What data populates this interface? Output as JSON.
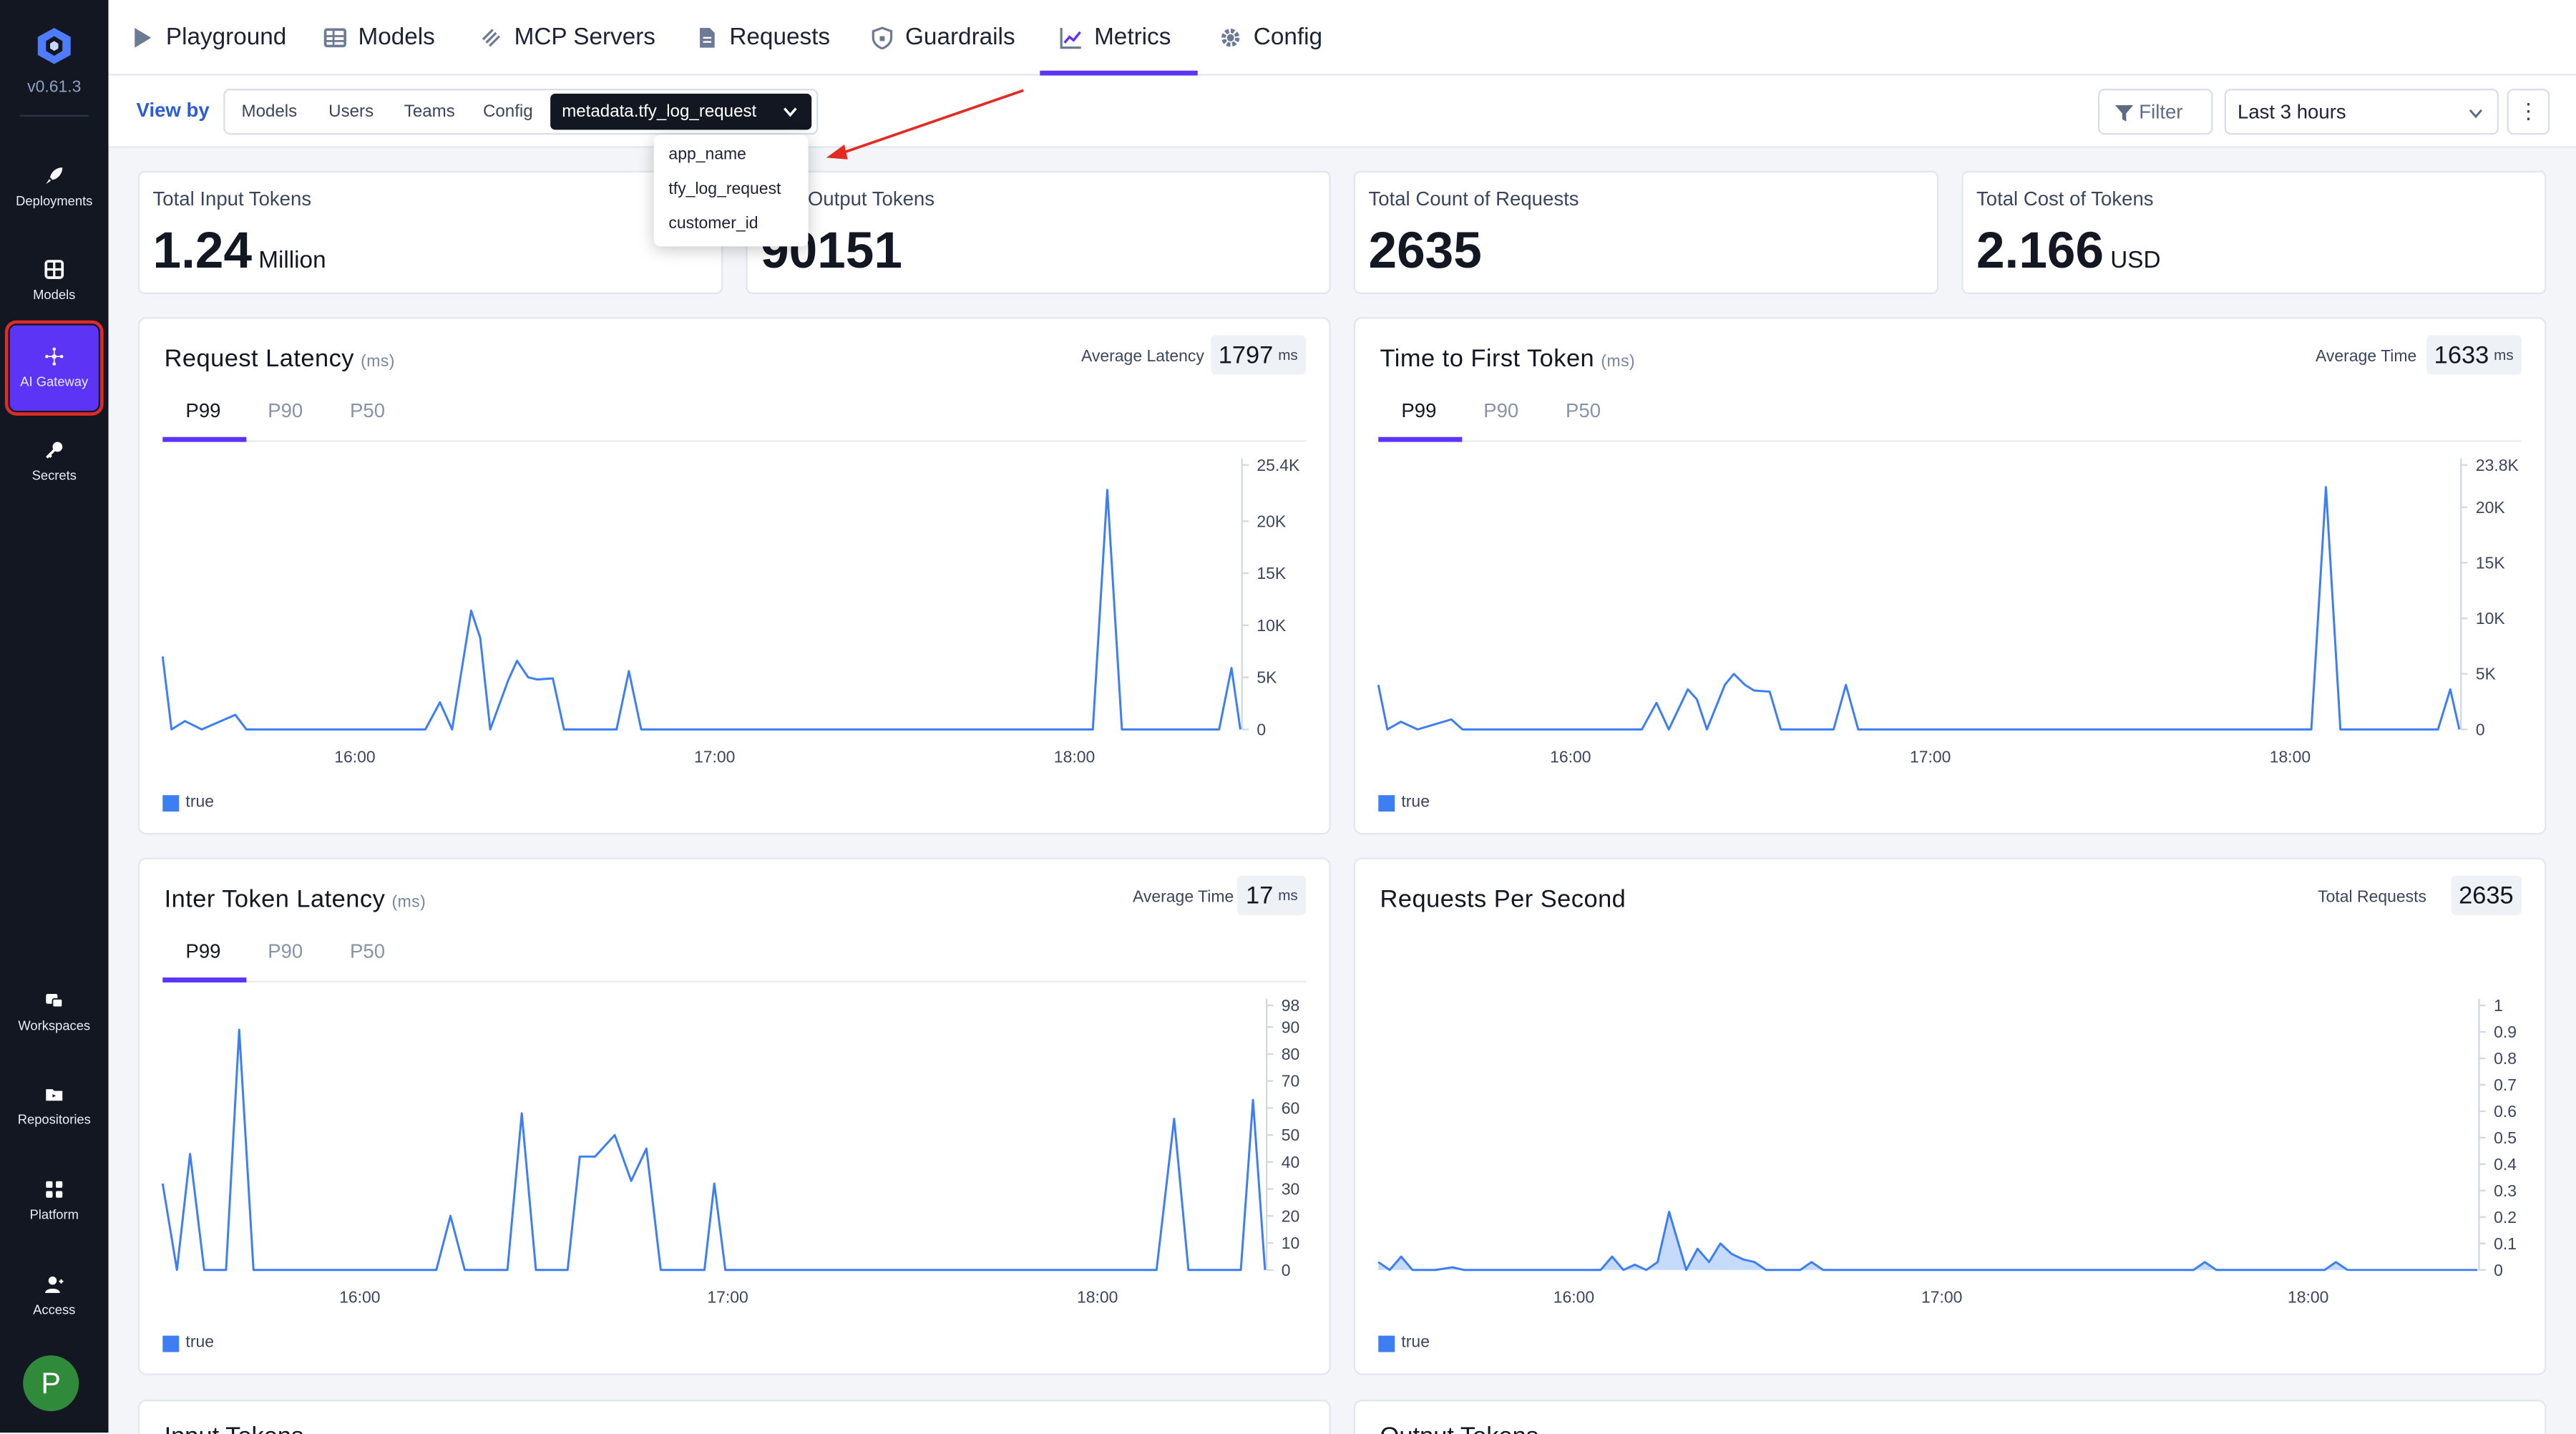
{
  "sidebar": {
    "version": "v0.61.3",
    "items": [
      {
        "label": "Deployments",
        "icon": "rocket-icon"
      },
      {
        "label": "Models",
        "icon": "grid-icon"
      },
      {
        "label": "AI Gateway",
        "icon": "gateway-icon",
        "active": true
      },
      {
        "label": "Secrets",
        "icon": "key-icon"
      },
      {
        "label": "Workspaces",
        "icon": "workspaces-icon"
      },
      {
        "label": "Repositories",
        "icon": "folder-icon"
      },
      {
        "label": "Platform",
        "icon": "apps-icon"
      },
      {
        "label": "Access",
        "icon": "user-icon"
      }
    ],
    "avatar": "P",
    "accent_color": "#5b34f6"
  },
  "topnav": {
    "tabs": [
      {
        "label": "Playground",
        "icon": "play-icon"
      },
      {
        "label": "Models",
        "icon": "table-icon"
      },
      {
        "label": "MCP Servers",
        "icon": "mcp-icon"
      },
      {
        "label": "Requests",
        "icon": "document-icon"
      },
      {
        "label": "Guardrails",
        "icon": "shield-icon"
      },
      {
        "label": "Metrics",
        "icon": "chart-icon",
        "active": true
      },
      {
        "label": "Config",
        "icon": "gear-icon"
      }
    ]
  },
  "toolbar": {
    "view_by_label": "View by",
    "options": [
      "Models",
      "Users",
      "Teams",
      "Config"
    ],
    "selected": "metadata.tfy_log_request",
    "dropdown_items": [
      "app_name",
      "tfy_log_request",
      "customer_id"
    ],
    "filter_label": "Filter",
    "time_range": "Last 3 hours"
  },
  "stats": [
    {
      "title": "Total Input Tokens",
      "value": "1.24",
      "unit": "Million"
    },
    {
      "title": "Total Output Tokens",
      "value": "90151",
      "unit": ""
    },
    {
      "title": "Total Count of Requests",
      "value": "2635",
      "unit": ""
    },
    {
      "title": "Total Cost of Tokens",
      "value": "2.166",
      "unit": "USD"
    }
  ],
  "panels": {
    "request_latency": {
      "title": "Request Latency",
      "unit": "(ms)",
      "avg_label": "Average Latency",
      "avg_value": "1797",
      "avg_unit": "ms",
      "tabs": [
        "P99",
        "P90",
        "P50"
      ]
    },
    "ttft": {
      "title": "Time to First Token",
      "unit": "(ms)",
      "avg_label": "Average Time",
      "avg_value": "1633",
      "avg_unit": "ms",
      "tabs": [
        "P99",
        "P90",
        "P50"
      ]
    },
    "itl": {
      "title": "Inter Token Latency",
      "unit": "(ms)",
      "avg_label": "Average Time",
      "avg_value": "17",
      "avg_unit": "ms",
      "tabs": [
        "P99",
        "P90",
        "P50"
      ]
    },
    "rps": {
      "title": "Requests Per Second",
      "avg_label": "Total Requests",
      "avg_value": "2635"
    }
  },
  "bottom_panels": [
    "Input Tokens",
    "Output Tokens"
  ],
  "chart_data": [
    {
      "type": "line",
      "title": "Request Latency",
      "x_ticks": [
        "16:00",
        "17:00",
        "18:00"
      ],
      "y_ticks": [
        "0",
        "5K",
        "10K",
        "15K",
        "20K",
        "25.4K"
      ],
      "ylim": [
        0,
        25400
      ],
      "series": [
        {
          "name": "true",
          "color": "#3d7ff2",
          "points": [
            [
              0,
              7000
            ],
            [
              0.8,
              0
            ],
            [
              2,
              800
            ],
            [
              3.5,
              0
            ],
            [
              6.5,
              1400
            ],
            [
              7.5,
              0
            ],
            [
              23.5,
              0
            ],
            [
              24.8,
              2600
            ],
            [
              25.9,
              0
            ],
            [
              27.6,
              11400
            ],
            [
              28.4,
              8800
            ],
            [
              29.3,
              0
            ],
            [
              30.9,
              4700
            ],
            [
              31.7,
              6600
            ],
            [
              32.7,
              5000
            ],
            [
              33.5,
              4800
            ],
            [
              34.9,
              4900
            ],
            [
              35.9,
              0
            ],
            [
              40.6,
              0
            ],
            [
              41.7,
              5600
            ],
            [
              42.8,
              0
            ],
            [
              83.2,
              0
            ],
            [
              84.5,
              23000
            ],
            [
              85.8,
              0
            ],
            [
              94.5,
              0
            ],
            [
              95.6,
              5900
            ],
            [
              96.4,
              0
            ]
          ]
        }
      ],
      "legend": "true"
    },
    {
      "type": "line",
      "title": "Time to First Token",
      "x_ticks": [
        "16:00",
        "17:00",
        "18:00"
      ],
      "y_ticks": [
        "0",
        "5K",
        "10K",
        "15K",
        "20K",
        "23.8K"
      ],
      "ylim": [
        0,
        23800
      ],
      "series": [
        {
          "name": "true",
          "color": "#3d7ff2",
          "points": [
            [
              0,
              4000
            ],
            [
              0.8,
              0
            ],
            [
              2,
              700
            ],
            [
              3.5,
              0
            ],
            [
              6.5,
              900
            ],
            [
              7.5,
              0
            ],
            [
              23.5,
              0
            ],
            [
              24.8,
              2400
            ],
            [
              25.9,
              0
            ],
            [
              27.6,
              3600
            ],
            [
              28.4,
              2700
            ],
            [
              29.3,
              0
            ],
            [
              30.9,
              4000
            ],
            [
              31.7,
              5000
            ],
            [
              32.7,
              4000
            ],
            [
              33.5,
              3500
            ],
            [
              34.9,
              3400
            ],
            [
              35.9,
              0
            ],
            [
              40.6,
              0
            ],
            [
              41.7,
              4000
            ],
            [
              42.8,
              0
            ],
            [
              83.2,
              0
            ],
            [
              84.5,
              21800
            ],
            [
              85.8,
              0
            ],
            [
              94.5,
              0
            ],
            [
              95.6,
              3600
            ],
            [
              96.4,
              0
            ]
          ]
        }
      ],
      "legend": "true"
    },
    {
      "type": "line",
      "title": "Inter Token Latency",
      "x_ticks": [
        "16:00",
        "17:00",
        "18:00"
      ],
      "y_ticks": [
        "0",
        "10",
        "20",
        "30",
        "40",
        "50",
        "60",
        "70",
        "80",
        "90",
        "98"
      ],
      "ylim": [
        0,
        98
      ],
      "series": [
        {
          "name": "true",
          "color": "#3d7ff2",
          "points": [
            [
              0,
              32
            ],
            [
              1.3,
              0
            ],
            [
              2.5,
              43
            ],
            [
              3.8,
              0
            ],
            [
              5.8,
              0
            ],
            [
              7,
              89
            ],
            [
              8.3,
              0
            ],
            [
              25,
              0
            ],
            [
              26.3,
              20
            ],
            [
              27.6,
              0
            ],
            [
              31.5,
              0
            ],
            [
              32.8,
              58
            ],
            [
              34.1,
              0
            ],
            [
              37,
              0
            ],
            [
              38.1,
              42
            ],
            [
              39.5,
              42
            ],
            [
              41.3,
              50
            ],
            [
              42.8,
              33
            ],
            [
              44.2,
              45
            ],
            [
              45.5,
              0
            ],
            [
              49.5,
              0
            ],
            [
              50.4,
              32
            ],
            [
              51.4,
              0
            ],
            [
              90.8,
              0
            ],
            [
              92.4,
              56
            ],
            [
              93.7,
              0
            ],
            [
              98.5,
              0
            ],
            [
              99.6,
              63
            ],
            [
              100.7,
              0
            ]
          ]
        }
      ],
      "legend": "true"
    },
    {
      "type": "area",
      "title": "Requests Per Second",
      "x_ticks": [
        "16:00",
        "17:00",
        "18:00"
      ],
      "y_ticks": [
        "0",
        "0.1",
        "0.2",
        "0.3",
        "0.4",
        "0.5",
        "0.6",
        "0.7",
        "0.8",
        "0.9",
        "1"
      ],
      "ylim": [
        0,
        1
      ],
      "series": [
        {
          "name": "true",
          "color": "#3d7ff2",
          "points": [
            [
              0,
              0.03
            ],
            [
              1,
              0
            ],
            [
              2,
              0.05
            ],
            [
              3,
              0
            ],
            [
              5,
              0
            ],
            [
              6.5,
              0.01
            ],
            [
              7.5,
              0
            ],
            [
              19.5,
              0
            ],
            [
              20.5,
              0.05
            ],
            [
              21.5,
              0
            ],
            [
              22.5,
              0.02
            ],
            [
              23.5,
              0
            ],
            [
              24.5,
              0.03
            ],
            [
              25.5,
              0.22
            ],
            [
              27,
              0
            ],
            [
              28,
              0.08
            ],
            [
              29,
              0.03
            ],
            [
              30,
              0.1
            ],
            [
              31,
              0.06
            ],
            [
              32,
              0.04
            ],
            [
              33,
              0.03
            ],
            [
              34,
              0
            ],
            [
              37,
              0
            ],
            [
              38,
              0.03
            ],
            [
              39,
              0
            ],
            [
              71.5,
              0
            ],
            [
              72.5,
              0.03
            ],
            [
              73.5,
              0
            ],
            [
              83,
              0
            ],
            [
              84,
              0.03
            ],
            [
              85,
              0
            ]
          ]
        }
      ],
      "legend": "true"
    }
  ]
}
